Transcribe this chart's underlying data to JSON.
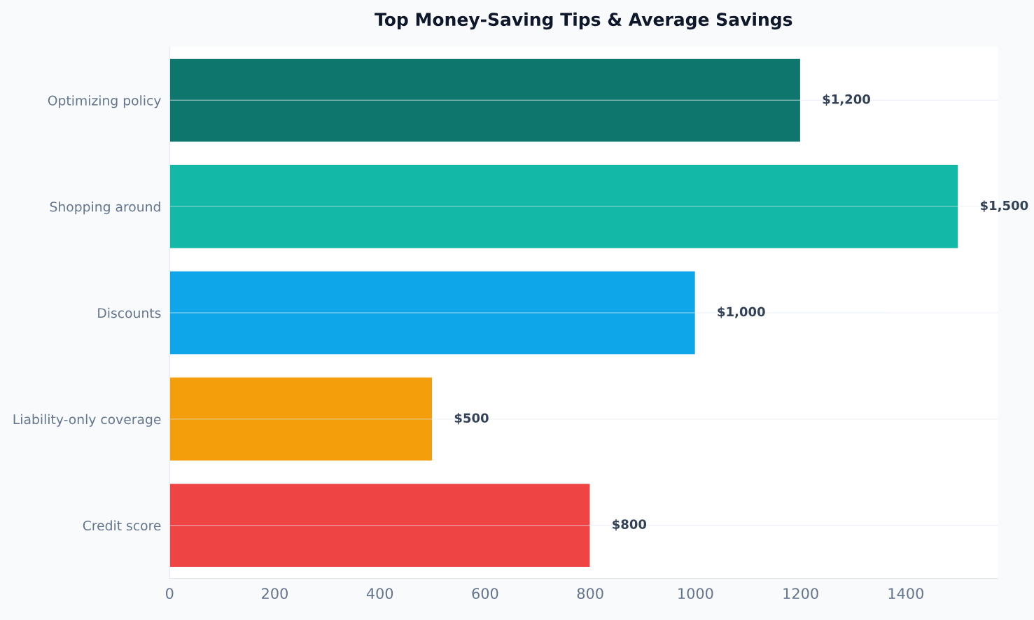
{
  "chart_data": {
    "type": "bar",
    "orientation": "horizontal",
    "title": "Top Money-Saving Tips & Average Savings",
    "categories": [
      "Optimizing policy",
      "Shopping around",
      "Discounts",
      "Liability-only coverage",
      "Credit score"
    ],
    "values": [
      1200,
      1500,
      1000,
      500,
      800
    ],
    "colors": [
      "#0f766e",
      "#14b8a6",
      "#0ea5e9",
      "#f59e0b",
      "#ef4444"
    ],
    "value_labels": [
      "$1,200",
      "$1,500",
      "$1,000",
      "$500",
      "$800"
    ],
    "xlim": [
      0,
      1575
    ],
    "xticks": [
      0,
      200,
      400,
      600,
      800,
      1000,
      1200,
      1400
    ],
    "grid": "y",
    "legend": false
  }
}
